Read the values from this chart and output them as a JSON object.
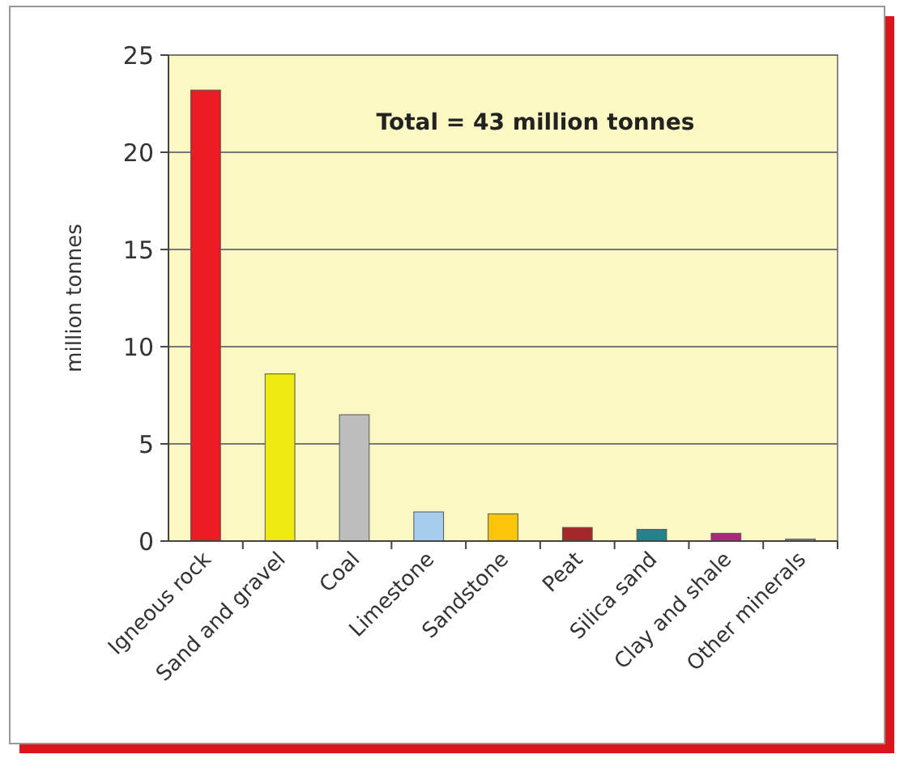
{
  "chart_data": {
    "type": "bar",
    "ylabel": "million tonnes",
    "annotations": [
      "Total = 43 million tonnes"
    ],
    "categories": [
      "Igneous rock",
      "Sand and gravel",
      "Coal",
      "Limestone",
      "Sandstone",
      "Peat",
      "Silica sand",
      "Clay and shale",
      "Other minerals"
    ],
    "values": [
      23.2,
      8.6,
      6.5,
      1.5,
      1.4,
      0.7,
      0.6,
      0.4,
      0.1
    ],
    "colors": [
      "#ed1c24",
      "#eeea10",
      "#bdbdbd",
      "#a6cdec",
      "#fdc60a",
      "#a3282a",
      "#24838a",
      "#b1267b",
      "#8c8c8c"
    ],
    "ylim": [
      0,
      25
    ],
    "yticks": [
      0,
      5,
      10,
      15,
      20,
      25
    ],
    "grid": "y"
  }
}
